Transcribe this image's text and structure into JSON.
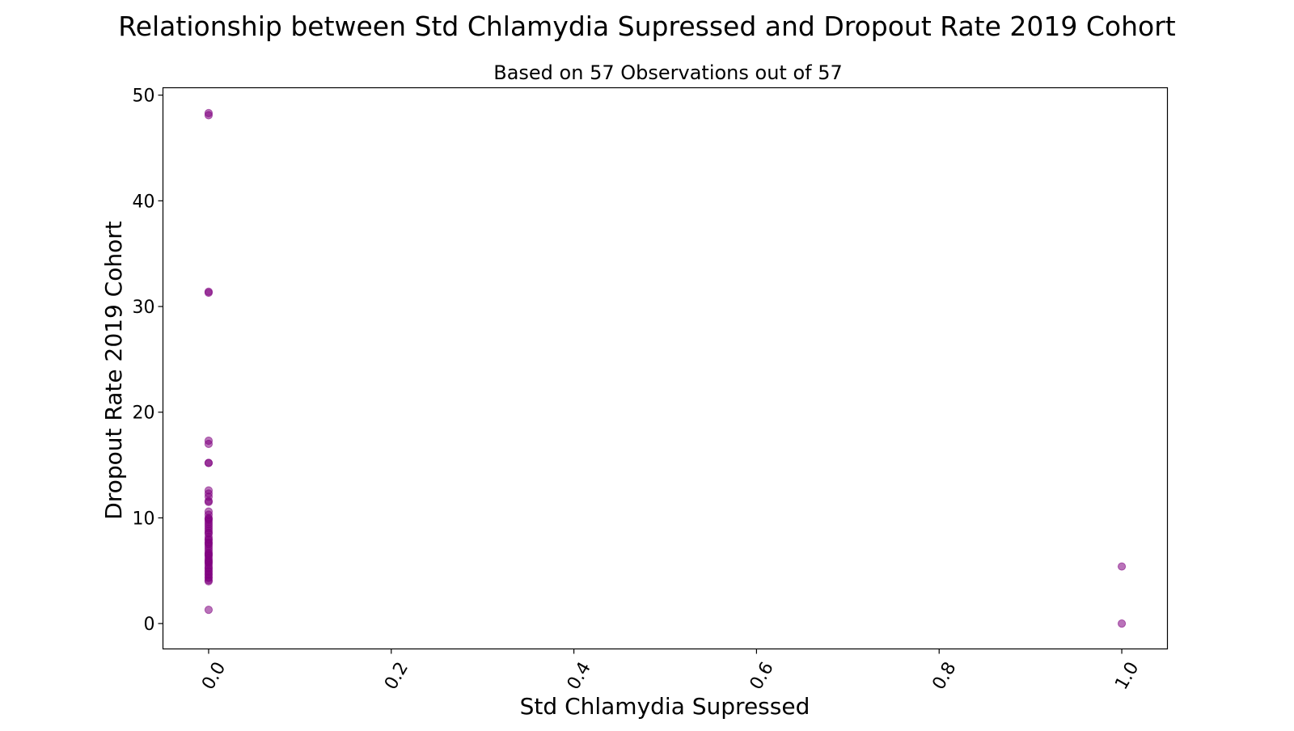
{
  "chart_data": {
    "type": "scatter",
    "title": "Relationship between Std Chlamydia Supressed and Dropout Rate 2019 Cohort",
    "subtitle": "Based on 57 Observations out of 57",
    "xlabel": "Std Chlamydia Supressed",
    "ylabel": "Dropout Rate 2019 Cohort",
    "xlim": [
      -0.05,
      1.05
    ],
    "ylim": [
      -2.4,
      50.7
    ],
    "x_ticks": [
      0.0,
      0.2,
      0.4,
      0.6,
      0.8,
      1.0
    ],
    "x_tick_labels": [
      "0.0",
      "0.2",
      "0.4",
      "0.6",
      "0.8",
      "1.0"
    ],
    "y_ticks": [
      0,
      10,
      20,
      30,
      40,
      50
    ],
    "y_tick_labels": [
      "0",
      "10",
      "20",
      "30",
      "40",
      "50"
    ],
    "grid": false,
    "legend": "none",
    "marker_color": "#800080",
    "marker_alpha": 0.55,
    "series": [
      {
        "x": [
          0,
          0,
          0,
          0,
          0,
          0,
          0,
          0,
          0,
          0,
          0,
          0,
          0,
          0,
          0,
          0,
          0,
          0,
          0,
          0,
          0,
          0,
          0,
          0,
          0,
          0,
          0,
          0,
          0,
          0,
          0,
          0,
          0,
          0,
          0,
          0,
          0,
          0,
          0,
          0,
          0,
          0,
          0,
          0,
          0,
          0,
          0,
          0,
          0,
          0,
          0,
          0,
          0,
          0,
          0,
          1,
          1
        ],
        "y": [
          48.3,
          48.1,
          31.4,
          31.3,
          17.3,
          17.0,
          15.2,
          15.2,
          12.6,
          12.3,
          12.0,
          11.6,
          11.5,
          10.6,
          10.3,
          10.0,
          9.8,
          9.6,
          9.4,
          9.2,
          9.0,
          8.8,
          8.5,
          8.2,
          8.0,
          7.9,
          7.7,
          7.5,
          7.3,
          7.1,
          6.9,
          6.7,
          6.5,
          6.4,
          6.2,
          6.0,
          5.9,
          5.7,
          5.5,
          5.3,
          5.2,
          5.0,
          4.9,
          4.7,
          4.6,
          4.4,
          4.3,
          4.1,
          4.0,
          5.8,
          6.6,
          7.6,
          8.6,
          1.3,
          9.9,
          5.4,
          0.0
        ]
      }
    ]
  }
}
